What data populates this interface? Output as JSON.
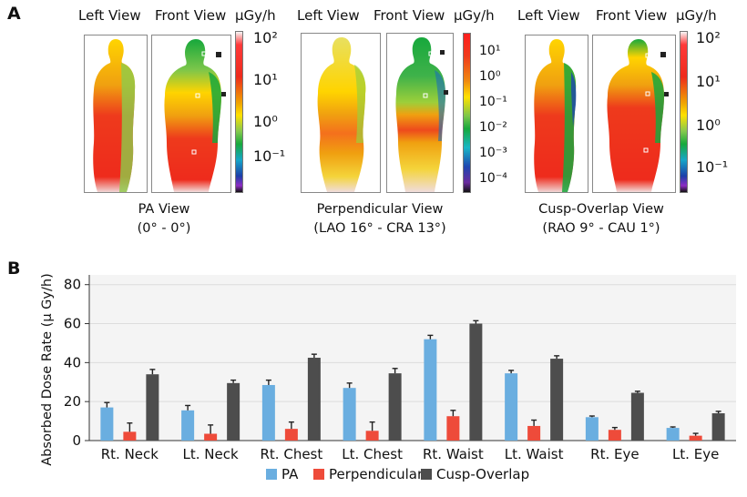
{
  "panel_a": {
    "letter": "A",
    "groups": [
      {
        "left_view": "Left View",
        "front_view": "Front View",
        "unit": "μGy/h",
        "scale": [
          "10²",
          "10¹",
          "10⁰",
          "10⁻¹"
        ],
        "caption_line1": "PA View",
        "caption_line2": "(0° - 0°)"
      },
      {
        "left_view": "Left View",
        "front_view": "Front View",
        "unit": "μGy/h",
        "scale": [
          "10¹",
          "10⁰",
          "10⁻¹",
          "10⁻²",
          "10⁻³",
          "10⁻⁴"
        ],
        "caption_line1": "Perpendicular View",
        "caption_line2": "(LAO 16° - CRA 13°)"
      },
      {
        "left_view": "Left View",
        "front_view": "Front View",
        "unit": "μGy/h",
        "scale": [
          "10²",
          "10¹",
          "10⁰",
          "10⁻¹"
        ],
        "caption_line1": "Cusp-Overlap View",
        "caption_line2": "(RAO 9° - CAU 1°)"
      }
    ]
  },
  "panel_b": {
    "letter": "B"
  },
  "chart_data": {
    "type": "bar",
    "ylabel": "Absorbed Dose Rate (μ Gy/h)",
    "xlabel": "",
    "ylim": [
      0,
      85
    ],
    "yticks": [
      0,
      20,
      40,
      60,
      80
    ],
    "grid": true,
    "legend_position": "bottom",
    "categories": [
      "Rt. Neck",
      "Lt. Neck",
      "Rt. Chest",
      "Lt. Chest",
      "Rt. Waist",
      "Lt. Waist",
      "Rt. Eye",
      "Lt. Eye"
    ],
    "series": [
      {
        "name": "PA",
        "color": "#6aaee0",
        "values": [
          17,
          15.5,
          28.5,
          27,
          52,
          34.5,
          12,
          6.5
        ],
        "errors": [
          2.5,
          2.5,
          2.5,
          2.5,
          2,
          1.5,
          0.6,
          0.5
        ]
      },
      {
        "name": "Perpendicular",
        "color": "#ee4b3a",
        "values": [
          4.5,
          3.5,
          6,
          5,
          12.5,
          7.5,
          5.5,
          2.5
        ],
        "errors": [
          4.5,
          4.5,
          3.5,
          4.5,
          3,
          3,
          1.2,
          1.2
        ]
      },
      {
        "name": "Cusp-Overlap",
        "color": "#4d4d4d",
        "values": [
          34,
          29.5,
          42.5,
          34.5,
          60,
          42,
          24.5,
          14
        ],
        "errors": [
          2.5,
          1.5,
          1.8,
          2.5,
          1.5,
          1.5,
          0.8,
          1
        ]
      }
    ]
  }
}
